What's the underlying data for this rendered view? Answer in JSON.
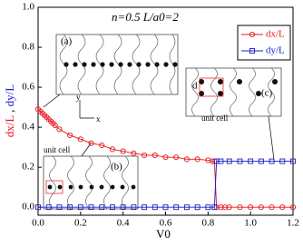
{
  "chart_data": {
    "type": "line",
    "title": "n=0.5 L/a0=2",
    "xlabel": "V0",
    "ylabel": [
      "dx/L",
      " , ",
      "dy/L"
    ],
    "xlim": [
      0,
      1.2
    ],
    "ylim": [
      -0.04,
      1.0
    ],
    "xticks": [
      {
        "value": 0,
        "label": "0.0"
      },
      {
        "value": 0.2,
        "label": "0.2"
      },
      {
        "value": 0.4,
        "label": "0.4"
      },
      {
        "value": 0.6,
        "label": "0.6"
      },
      {
        "value": 0.8,
        "label": "0.8"
      },
      {
        "value": 1.0,
        "label": "1.0"
      },
      {
        "value": 1.2,
        "label": "1.2"
      }
    ],
    "yticks": [
      {
        "value": 0,
        "label": "0.0"
      },
      {
        "value": 0.2,
        "label": "0.2"
      },
      {
        "value": 0.4,
        "label": "0.4"
      },
      {
        "value": 0.6,
        "label": "0.6"
      },
      {
        "value": 0.8,
        "label": "0.8"
      },
      {
        "value": 1.0,
        "label": "1.0"
      }
    ],
    "legend": "upper right",
    "series": [
      {
        "name": "dx/L",
        "color": "#e8141b",
        "marker": "circle",
        "x": [
          0,
          0.01,
          0.02,
          0.03,
          0.04,
          0.05,
          0.06,
          0.07,
          0.08,
          0.1,
          0.15,
          0.2,
          0.25,
          0.3,
          0.35,
          0.4,
          0.45,
          0.5,
          0.55,
          0.6,
          0.65,
          0.7,
          0.75,
          0.8,
          0.82,
          0.83,
          0.84,
          0.86,
          0.88,
          0.9,
          0.95,
          1.0,
          1.05,
          1.1,
          1.15,
          1.2
        ],
        "values": [
          0.49,
          0.48,
          0.47,
          0.46,
          0.45,
          0.44,
          0.43,
          0.42,
          0.41,
          0.39,
          0.36,
          0.34,
          0.32,
          0.31,
          0.29,
          0.28,
          0.27,
          0.26,
          0.26,
          0.25,
          0.25,
          0.24,
          0.24,
          0.235,
          0.23,
          0.23,
          0,
          0,
          0,
          0,
          0,
          0,
          0,
          0,
          0,
          0
        ]
      },
      {
        "name": "dy/L",
        "color": "#1a1ad0",
        "marker": "square",
        "x": [
          0,
          0.05,
          0.1,
          0.15,
          0.2,
          0.25,
          0.3,
          0.35,
          0.4,
          0.45,
          0.5,
          0.55,
          0.6,
          0.65,
          0.7,
          0.75,
          0.8,
          0.83,
          0.84,
          0.86,
          0.9,
          0.95,
          1.0,
          1.05,
          1.1,
          1.15,
          1.2
        ],
        "values": [
          0,
          0,
          0,
          0,
          0,
          0,
          0,
          0,
          0,
          0,
          0,
          0,
          0,
          0,
          0,
          0,
          0,
          0,
          0.23,
          0.23,
          0.23,
          0.23,
          0.23,
          0.23,
          0.23,
          0.23,
          0.23
        ]
      }
    ],
    "annotations": [
      "(a)",
      "(b)",
      "(c)",
      "unit cell",
      "unit cell",
      "d",
      "y",
      "x"
    ]
  }
}
